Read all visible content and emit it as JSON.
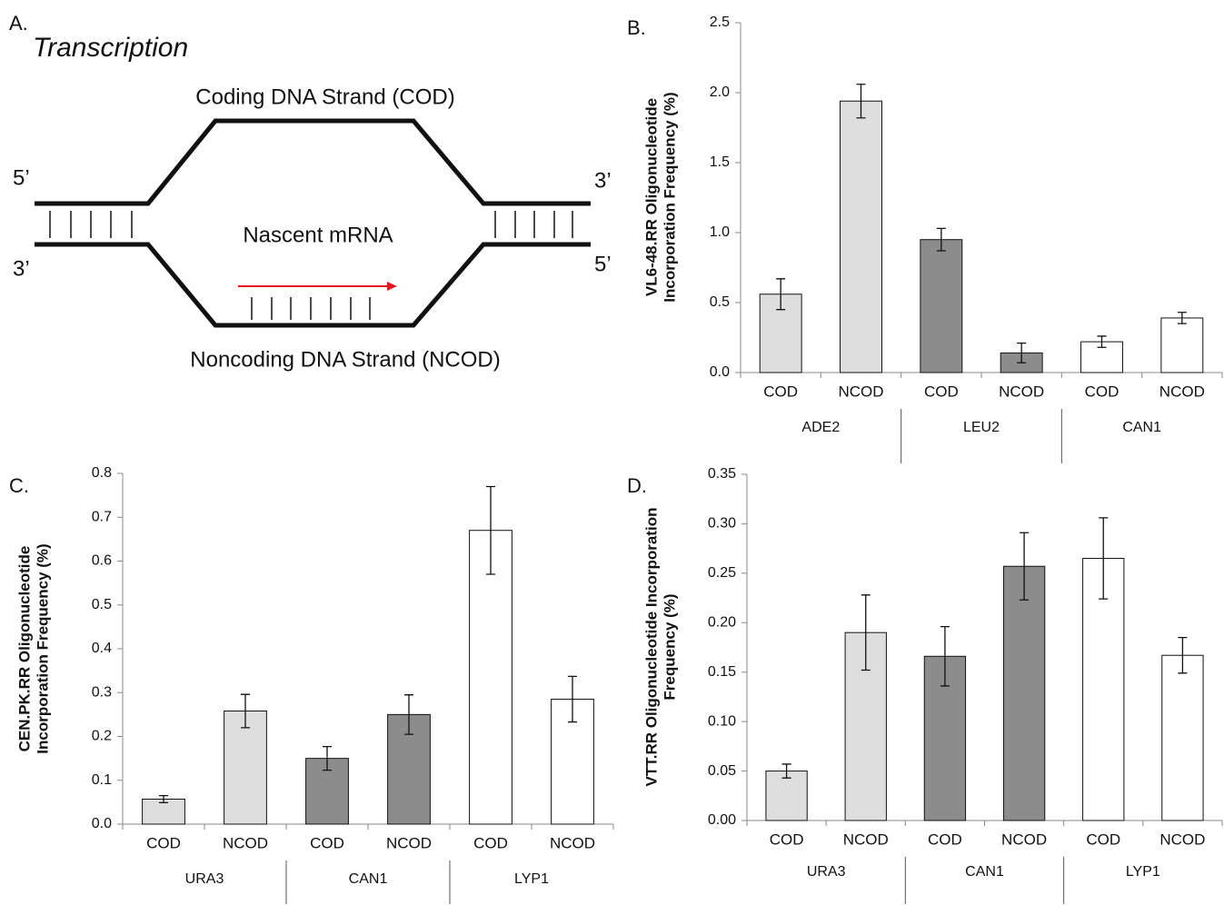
{
  "panel_a": {
    "panel_label": "A.",
    "title": "Transcription",
    "top_strand": "Coding DNA Strand (COD)",
    "bottom_strand": "Noncoding DNA Strand (NCOD)",
    "mrna": "Nascent mRNA",
    "top_left_end": "5’",
    "bottom_left_end": "3’",
    "top_right_end": "3’",
    "bottom_right_end": "5’"
  },
  "chart_data": [
    {
      "type": "bar",
      "panel_label": "B.",
      "ylabel": [
        "VL6-48.RR Oligonucleotide",
        "Incorporation Frequency (%)"
      ],
      "categories": [
        "COD",
        "NCOD",
        "COD",
        "NCOD",
        "COD",
        "NCOD"
      ],
      "groups": [
        "ADE2",
        "LEU2",
        "CAN1"
      ],
      "group_colors": [
        "#dedede",
        "#8c8c8c",
        "#ffffff"
      ],
      "values": [
        0.56,
        1.94,
        0.95,
        0.14,
        0.22,
        0.39
      ],
      "errors": [
        0.11,
        0.12,
        0.08,
        0.07,
        0.04,
        0.04
      ],
      "ylim": [
        0,
        2.5
      ],
      "yticks": [
        {
          "value": 0,
          "label": "0.0"
        },
        0.5,
        {
          "value": 1,
          "label": "1.0"
        },
        1.5,
        {
          "value": 2,
          "label": "2.0"
        },
        2.5
      ]
    },
    {
      "type": "bar",
      "panel_label": "C.",
      "ylabel": [
        "CEN.PK.RR Oligonucleotide",
        "Incorporation Frequency (%)"
      ],
      "categories": [
        "COD",
        "NCOD",
        "COD",
        "NCOD",
        "COD",
        "NCOD"
      ],
      "groups": [
        "URA3",
        "CAN1",
        "LYP1"
      ],
      "group_colors": [
        "#dedede",
        "#8c8c8c",
        "#ffffff"
      ],
      "values": [
        0.057,
        0.258,
        0.15,
        0.25,
        0.67,
        0.285
      ],
      "errors": [
        0.008,
        0.038,
        0.027,
        0.045,
        0.1,
        0.052
      ],
      "ylim": [
        0,
        0.8
      ],
      "yticks": [
        {
          "value": 0,
          "label": "0.0"
        },
        0.1,
        0.2,
        0.3,
        0.4,
        0.5,
        0.6,
        0.7,
        0.8
      ]
    },
    {
      "type": "bar",
      "panel_label": "D.",
      "ylabel": [
        "VTT.RR Oligonucleotide Incorporation",
        "Frequency (%)"
      ],
      "categories": [
        "COD",
        "NCOD",
        "COD",
        "NCOD",
        "COD",
        "NCOD"
      ],
      "groups": [
        "URA3",
        "CAN1",
        "LYP1"
      ],
      "group_colors": [
        "#dedede",
        "#8c8c8c",
        "#ffffff"
      ],
      "values": [
        0.05,
        0.19,
        0.166,
        0.257,
        0.265,
        0.167
      ],
      "errors": [
        0.007,
        0.038,
        0.03,
        0.034,
        0.041,
        0.018
      ],
      "ylim": [
        0,
        0.35
      ],
      "yticks": [
        {
          "value": 0,
          "label": "0.00"
        },
        0.05,
        {
          "value": 0.1,
          "label": "0.10"
        },
        0.15,
        {
          "value": 0.2,
          "label": "0.20"
        },
        0.25,
        {
          "value": 0.3,
          "label": "0.30"
        },
        0.35
      ]
    }
  ]
}
